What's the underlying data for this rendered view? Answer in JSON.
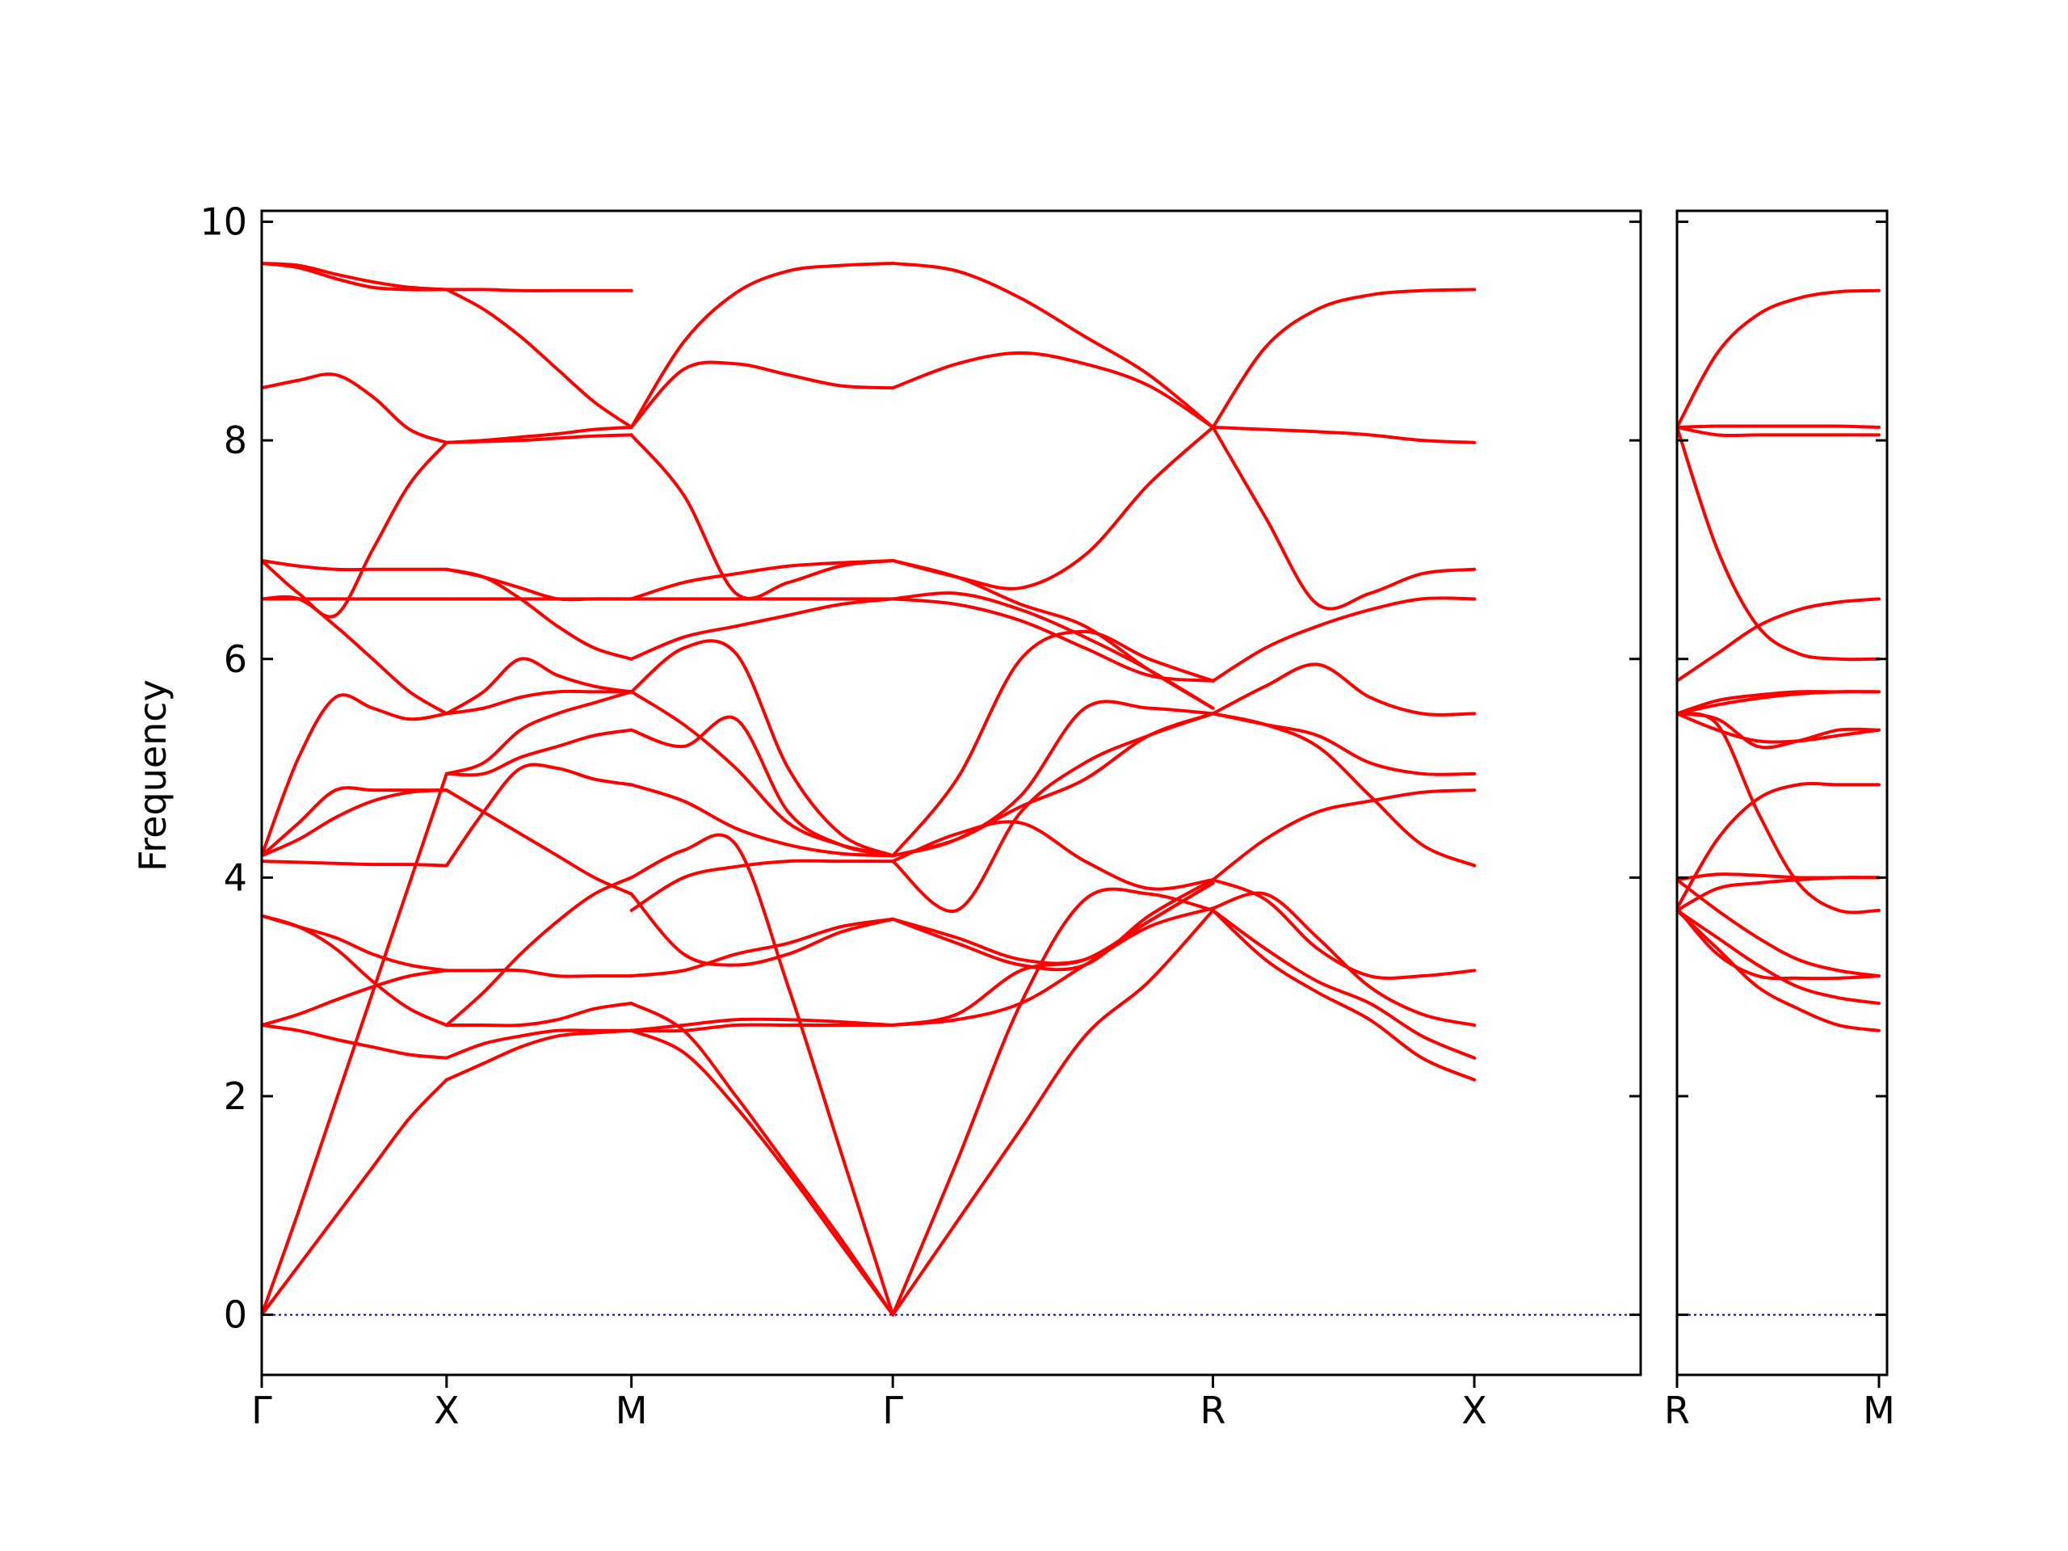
{
  "chart_data": {
    "type": "line",
    "title": "",
    "ylabel": "Frequency",
    "ylim": [
      -0.55,
      10.1
    ],
    "yticks": [
      0,
      2,
      4,
      6,
      8,
      10
    ],
    "grid": false,
    "legend": "none",
    "colors": {
      "bands": "#ff0000",
      "zero_line": "#0000cc",
      "axes": "#000000"
    },
    "panels": [
      {
        "x_range": [
          0,
          3.73
        ],
        "ticks": [
          {
            "x": 0,
            "label": "Γ"
          },
          {
            "x": 0.5,
            "label": "X"
          },
          {
            "x": 1.0,
            "label": "M"
          },
          {
            "x": 1.707,
            "label": "Γ"
          },
          {
            "x": 2.573,
            "label": "R"
          },
          {
            "x": 3.28,
            "label": "X"
          }
        ],
        "segments": [
          {
            "x": [
              0,
              0.1,
              0.2,
              0.3,
              0.4,
              0.5
            ],
            "bands": [
              [
                0,
                0.45,
                0.9,
                1.35,
                1.8,
                2.15
              ],
              [
                0,
                0.95,
                1.95,
                2.95,
                3.95,
                4.95
              ],
              [
                2.65,
                2.6,
                2.52,
                2.45,
                2.38,
                2.35
              ],
              [
                2.65,
                2.75,
                2.88,
                3.0,
                3.1,
                3.15
              ],
              [
                3.65,
                3.55,
                3.35,
                3.05,
                2.8,
                2.65
              ],
              [
                3.65,
                3.55,
                3.45,
                3.3,
                3.2,
                3.15
              ],
              [
                4.15,
                4.14,
                4.13,
                4.12,
                4.12,
                4.11
              ],
              [
                4.2,
                4.35,
                4.55,
                4.7,
                4.78,
                4.8
              ],
              [
                4.2,
                4.5,
                4.8,
                4.8,
                4.8,
                4.8
              ],
              [
                4.2,
                5.1,
                5.65,
                5.55,
                5.45,
                5.5
              ],
              [
                6.55,
                6.55,
                6.3,
                6.0,
                5.7,
                5.5
              ],
              [
                6.55,
                6.55,
                6.55,
                6.55,
                6.55,
                6.55
              ],
              [
                6.9,
                6.85,
                6.82,
                6.82,
                6.82,
                6.82
              ],
              [
                6.9,
                6.6,
                6.4,
                7.0,
                7.6,
                7.98
              ],
              [
                8.48,
                8.55,
                8.6,
                8.4,
                8.1,
                7.98
              ],
              [
                9.62,
                9.58,
                9.48,
                9.4,
                9.38,
                9.38
              ],
              [
                9.62,
                9.6,
                9.52,
                9.45,
                9.4,
                9.38
              ]
            ]
          },
          {
            "x": [
              0.5,
              0.6,
              0.7,
              0.8,
              0.9,
              1.0
            ],
            "bands": [
              [
                2.15,
                2.3,
                2.45,
                2.55,
                2.58,
                2.6
              ],
              [
                2.35,
                2.48,
                2.55,
                2.6,
                2.6,
                2.6
              ],
              [
                2.65,
                2.65,
                2.65,
                2.7,
                2.8,
                2.85
              ],
              [
                2.65,
                2.95,
                3.3,
                3.6,
                3.85,
                4.0
              ],
              [
                3.15,
                3.15,
                3.15,
                3.1,
                3.1,
                3.1
              ],
              [
                4.8,
                4.6,
                4.4,
                4.2,
                4.0,
                3.85
              ],
              [
                4.11,
                4.6,
                5.0,
                5.0,
                4.9,
                4.85
              ],
              [
                4.95,
                4.95,
                5.1,
                5.2,
                5.3,
                5.35
              ],
              [
                4.95,
                5.05,
                5.35,
                5.5,
                5.6,
                5.7
              ],
              [
                5.5,
                5.55,
                5.65,
                5.7,
                5.7,
                5.7
              ],
              [
                5.5,
                5.7,
                6.0,
                5.85,
                5.75,
                5.7
              ],
              [
                6.55,
                6.55,
                6.55,
                6.55,
                6.55,
                6.55
              ],
              [
                6.82,
                6.75,
                6.55,
                6.3,
                6.1,
                6.0
              ],
              [
                6.82,
                6.75,
                6.65,
                6.55,
                6.55,
                6.55
              ],
              [
                7.98,
                8.0,
                8.03,
                8.06,
                8.1,
                8.12
              ],
              [
                7.98,
                7.99,
                8.0,
                8.02,
                8.04,
                8.05
              ],
              [
                9.38,
                9.2,
                8.95,
                8.65,
                8.35,
                8.12
              ],
              [
                9.38,
                9.38,
                9.37,
                9.37,
                9.37,
                9.37
              ]
            ]
          },
          {
            "x": [
              1.0,
              1.1414,
              1.2828,
              1.4243,
              1.5657,
              1.7071
            ],
            "bands": [
              [
                2.6,
                2.4,
                1.9,
                1.3,
                0.65,
                0
              ],
              [
                2.85,
                2.6,
                2.0,
                1.35,
                0.7,
                0
              ],
              [
                2.6,
                2.6,
                2.65,
                2.65,
                2.65,
                2.65
              ],
              [
                2.6,
                2.65,
                2.7,
                2.7,
                2.68,
                2.65
              ],
              [
                3.1,
                3.15,
                3.3,
                3.4,
                3.55,
                3.62
              ],
              [
                3.85,
                3.3,
                3.2,
                3.3,
                3.5,
                3.62
              ],
              [
                4.0,
                4.25,
                4.3,
                3.0,
                1.5,
                0
              ],
              [
                3.7,
                4.0,
                4.1,
                4.15,
                4.15,
                4.15
              ],
              [
                4.85,
                4.7,
                4.45,
                4.3,
                4.22,
                4.2
              ],
              [
                5.35,
                5.2,
                5.45,
                4.6,
                4.3,
                4.2
              ],
              [
                5.7,
                6.1,
                6.05,
                5.0,
                4.4,
                4.2
              ],
              [
                5.7,
                5.4,
                5.0,
                4.5,
                4.3,
                4.2
              ],
              [
                6.0,
                6.2,
                6.3,
                6.4,
                6.5,
                6.55
              ],
              [
                6.55,
                6.55,
                6.55,
                6.55,
                6.55,
                6.55
              ],
              [
                6.55,
                6.7,
                6.78,
                6.85,
                6.88,
                6.9
              ],
              [
                8.05,
                7.5,
                6.6,
                6.7,
                6.85,
                6.9
              ],
              [
                8.12,
                8.65,
                8.7,
                8.6,
                8.5,
                8.48
              ],
              [
                8.12,
                8.9,
                9.35,
                9.55,
                9.6,
                9.62
              ]
            ]
          },
          {
            "x": [
              1.7071,
              1.8803,
              2.0535,
              2.2267,
              2.3999,
              2.5731
            ],
            "bands": [
              [
                0,
                0.85,
                1.7,
                2.55,
                3.05,
                3.7
              ],
              [
                0,
                1.4,
                2.85,
                3.8,
                3.85,
                3.7
              ],
              [
                2.65,
                2.7,
                2.85,
                3.2,
                3.55,
                3.72
              ],
              [
                2.65,
                2.75,
                3.15,
                3.25,
                3.6,
                3.95
              ],
              [
                3.62,
                3.45,
                3.25,
                3.25,
                3.6,
                3.95
              ],
              [
                3.62,
                3.4,
                3.2,
                3.2,
                3.65,
                3.98
              ],
              [
                4.15,
                3.7,
                4.6,
                5.05,
                5.3,
                5.5
              ],
              [
                4.15,
                4.4,
                4.5,
                4.15,
                3.9,
                3.98
              ],
              [
                4.2,
                4.35,
                4.65,
                4.9,
                5.3,
                5.5
              ],
              [
                4.2,
                4.9,
                6.0,
                6.25,
                6.0,
                5.8
              ],
              [
                4.2,
                4.35,
                4.75,
                5.55,
                5.55,
                5.5
              ],
              [
                6.55,
                6.5,
                6.35,
                6.1,
                5.85,
                5.8
              ],
              [
                6.55,
                6.6,
                6.45,
                6.2,
                5.9,
                5.55
              ],
              [
                6.9,
                6.75,
                6.5,
                6.3,
                5.9,
                5.55
              ],
              [
                6.9,
                6.75,
                6.65,
                6.95,
                7.6,
                8.12
              ],
              [
                8.48,
                8.7,
                8.8,
                8.7,
                8.5,
                8.12
              ],
              [
                9.62,
                9.55,
                9.3,
                8.95,
                8.6,
                8.12
              ]
            ]
          },
          {
            "x": [
              2.5731,
              2.7145,
              2.8559,
              2.9973,
              3.1387,
              3.2802
            ],
            "bands": [
              [
                3.7,
                3.25,
                2.95,
                2.7,
                2.35,
                2.15
              ],
              [
                3.7,
                3.35,
                3.05,
                2.85,
                2.55,
                2.35
              ],
              [
                3.72,
                3.85,
                3.45,
                3.0,
                2.75,
                2.65
              ],
              [
                3.98,
                3.8,
                3.35,
                3.1,
                3.1,
                3.15
              ],
              [
                3.98,
                4.35,
                4.6,
                4.7,
                4.78,
                4.8
              ],
              [
                5.5,
                5.4,
                5.2,
                4.75,
                4.3,
                4.11
              ],
              [
                5.5,
                5.4,
                5.3,
                5.05,
                4.95,
                4.95
              ],
              [
                5.5,
                5.75,
                5.95,
                5.65,
                5.5,
                5.5
              ],
              [
                5.8,
                6.1,
                6.3,
                6.45,
                6.55,
                6.55
              ],
              [
                8.12,
                7.3,
                6.5,
                6.6,
                6.78,
                6.82
              ],
              [
                8.12,
                8.1,
                8.08,
                8.05,
                8.0,
                7.98
              ],
              [
                8.12,
                8.85,
                9.2,
                9.33,
                9.37,
                9.38
              ]
            ]
          }
        ]
      },
      {
        "x_range": [
          0,
          0.52
        ],
        "ticks": [
          {
            "x": 0,
            "label": "R"
          },
          {
            "x": 0.5,
            "label": "M"
          }
        ],
        "segments": [
          {
            "x": [
              0,
              0.1,
              0.2,
              0.3,
              0.4,
              0.5
            ],
            "bands": [
              [
                3.7,
                3.35,
                3.0,
                2.8,
                2.65,
                2.6
              ],
              [
                3.7,
                3.45,
                3.2,
                3.0,
                2.9,
                2.85
              ],
              [
                3.72,
                3.3,
                3.1,
                3.08,
                3.08,
                3.1
              ],
              [
                3.98,
                3.7,
                3.45,
                3.25,
                3.15,
                3.1
              ],
              [
                3.98,
                4.03,
                4.02,
                4.0,
                4.0,
                4.0
              ],
              [
                3.7,
                3.9,
                3.95,
                3.98,
                4.0,
                4.0
              ],
              [
                3.72,
                4.35,
                4.72,
                4.85,
                4.85,
                4.85
              ],
              [
                5.5,
                5.4,
                4.6,
                3.95,
                3.7,
                3.7
              ],
              [
                5.5,
                5.35,
                5.25,
                5.25,
                5.3,
                5.35
              ],
              [
                5.5,
                5.45,
                5.2,
                5.25,
                5.35,
                5.35
              ],
              [
                5.5,
                5.62,
                5.67,
                5.7,
                5.7,
                5.7
              ],
              [
                5.5,
                5.58,
                5.64,
                5.68,
                5.7,
                5.7
              ],
              [
                5.8,
                6.05,
                6.3,
                6.45,
                6.52,
                6.55
              ],
              [
                8.12,
                7.0,
                6.3,
                6.05,
                6.0,
                6.0
              ],
              [
                8.12,
                8.05,
                8.05,
                8.05,
                8.05,
                8.05
              ],
              [
                8.12,
                8.13,
                8.13,
                8.13,
                8.13,
                8.12
              ],
              [
                8.12,
                8.8,
                9.15,
                9.3,
                9.36,
                9.37
              ]
            ]
          }
        ]
      }
    ]
  }
}
